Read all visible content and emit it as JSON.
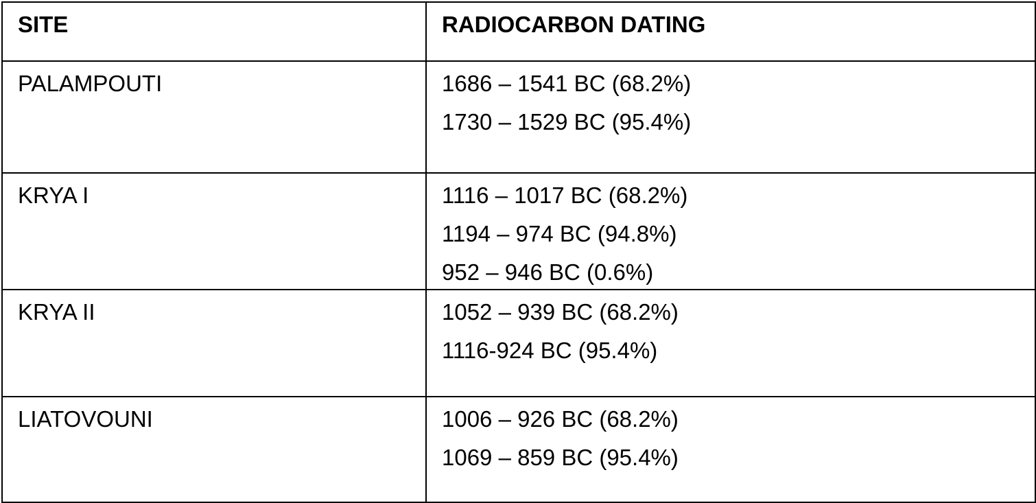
{
  "table": {
    "header": [
      "SITE",
      "RADIOCARBON DATING"
    ],
    "rows": [
      {
        "site": "PALAMPOUTI",
        "dates": [
          "1686 – 1541 BC (68.2%)",
          "1730 – 1529 BC (95.4%)"
        ]
      },
      {
        "site": "KRYA I",
        "dates": [
          "1116 – 1017 BC (68.2%)",
          "1194 – 974 BC (94.8%)",
          "952 – 946 BC (0.6%)"
        ]
      },
      {
        "site": "KRYA II",
        "dates": [
          "1052 – 939 BC (68.2%)",
          "1116-924 BC (95.4%)"
        ]
      },
      {
        "site": "LIATOVOUNI",
        "dates": [
          "1006 – 926 BC (68.2%)",
          "1069 – 859 BC (95.4%)"
        ]
      }
    ]
  }
}
